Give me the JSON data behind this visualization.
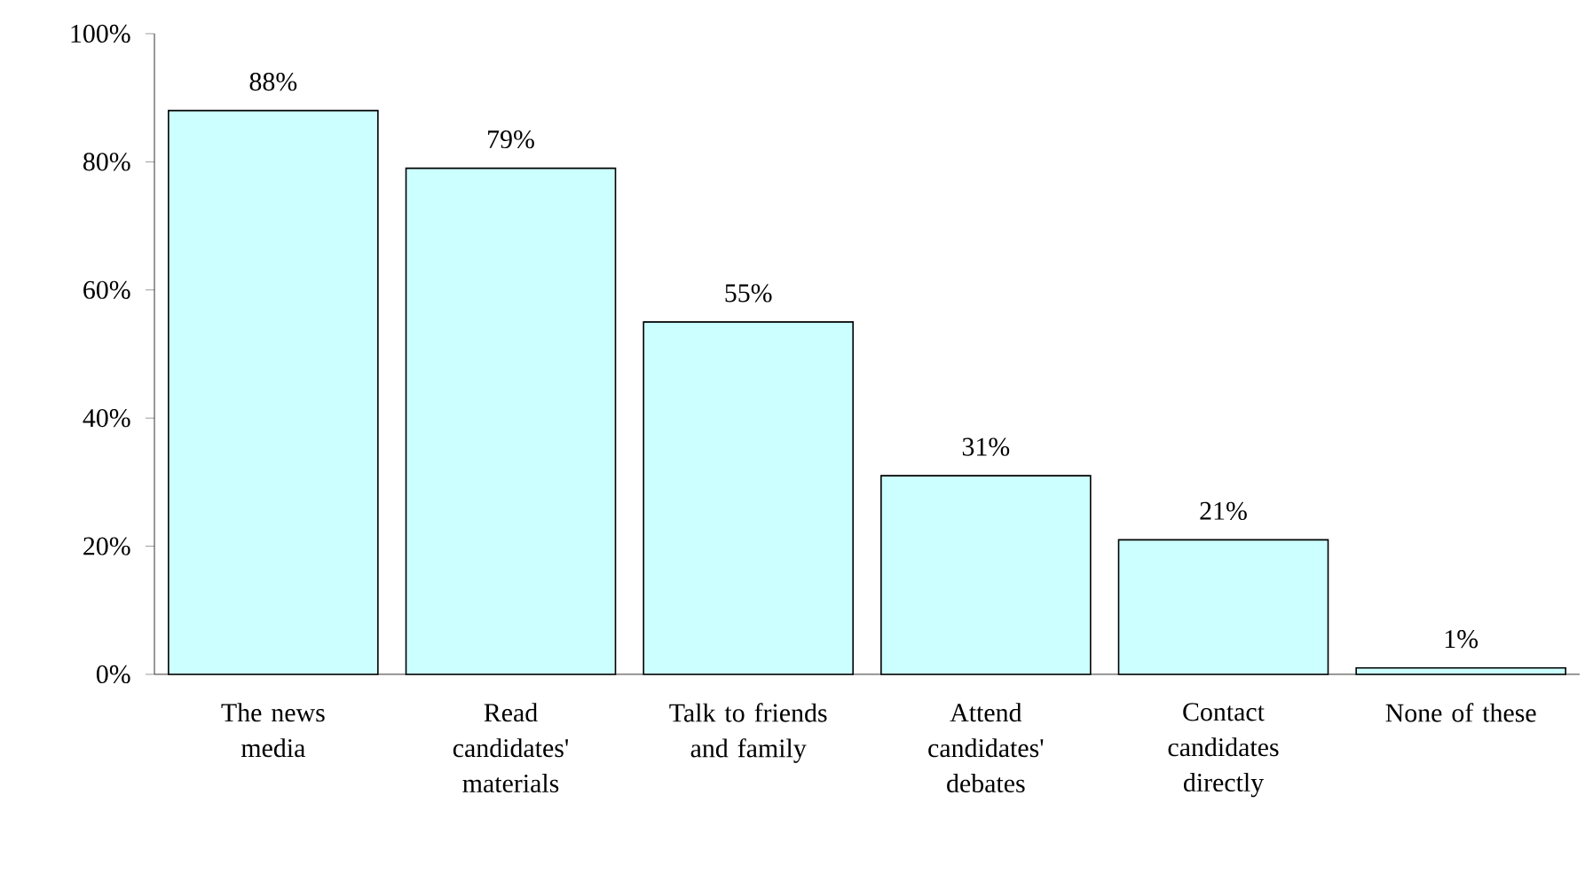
{
  "chart_data": {
    "type": "bar",
    "categories": [
      "The news media",
      "Read candidates' materials",
      "Talk to friends and family",
      "Attend candidates' debates",
      "Contact candidates directly",
      "None of these"
    ],
    "values": [
      88,
      79,
      55,
      31,
      21,
      1
    ],
    "value_labels": [
      "88%",
      "79%",
      "55%",
      "31%",
      "21%",
      "1%"
    ],
    "color": "#ccffff",
    "ylim": [
      0,
      100
    ],
    "yticks": [
      {
        "value": 0,
        "label": "0%"
      },
      {
        "value": 20,
        "label": "20%"
      },
      {
        "value": 40,
        "label": "40%"
      },
      {
        "value": 60,
        "label": "60%"
      },
      {
        "value": 80,
        "label": "80%"
      },
      {
        "value": 100,
        "label": "100%"
      }
    ],
    "grid": false
  }
}
